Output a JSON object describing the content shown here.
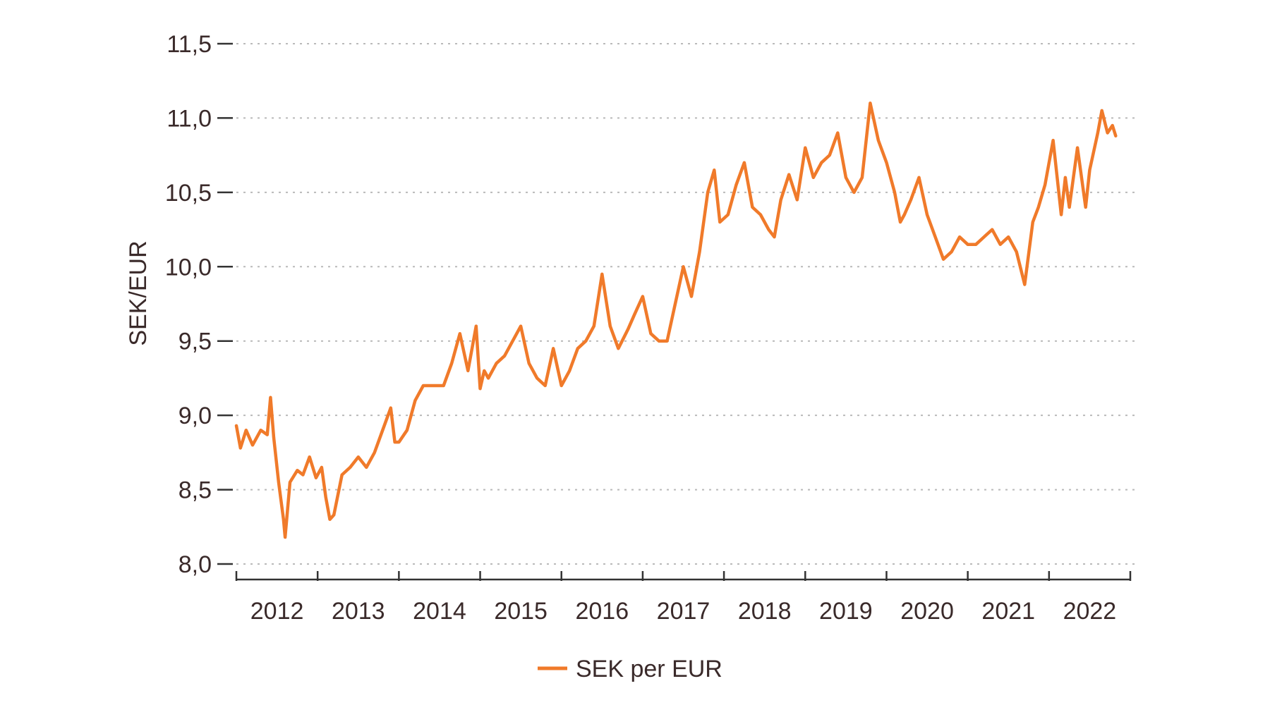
{
  "chart_data": {
    "type": "line",
    "title": "",
    "xlabel": "",
    "ylabel": "SEK/EUR",
    "ylim": [
      8.0,
      11.5
    ],
    "xlim": [
      2012.0,
      2023.0
    ],
    "y_ticks": [
      "8,0",
      "8,5",
      "9,0",
      "9,5",
      "10,0",
      "10,5",
      "11,0",
      "11,5"
    ],
    "y_tick_values": [
      8.0,
      8.5,
      9.0,
      9.5,
      10.0,
      10.5,
      11.0,
      11.5
    ],
    "x_ticks": [
      "2012",
      "2013",
      "2014",
      "2015",
      "2016",
      "2017",
      "2018",
      "2019",
      "2020",
      "2021",
      "2022"
    ],
    "grid": true,
    "legend_position": "bottom-center",
    "series": [
      {
        "name": "SEK per EUR",
        "color": "#f07a2a",
        "x": [
          2012.0,
          2012.05,
          2012.12,
          2012.2,
          2012.3,
          2012.38,
          2012.42,
          2012.46,
          2012.52,
          2012.58,
          2012.6,
          2012.66,
          2012.75,
          2012.82,
          2012.9,
          2012.98,
          2013.05,
          2013.1,
          2013.15,
          2013.2,
          2013.3,
          2013.4,
          2013.5,
          2013.6,
          2013.7,
          2013.8,
          2013.9,
          2013.95,
          2014.0,
          2014.1,
          2014.2,
          2014.3,
          2014.45,
          2014.55,
          2014.65,
          2014.75,
          2014.85,
          2014.95,
          2015.0,
          2015.05,
          2015.1,
          2015.2,
          2015.3,
          2015.4,
          2015.5,
          2015.6,
          2015.7,
          2015.8,
          2015.9,
          2016.0,
          2016.1,
          2016.2,
          2016.3,
          2016.4,
          2016.5,
          2016.6,
          2016.7,
          2016.82,
          2016.9,
          2017.0,
          2017.1,
          2017.2,
          2017.3,
          2017.4,
          2017.5,
          2017.6,
          2017.7,
          2017.8,
          2017.88,
          2017.95,
          2018.05,
          2018.15,
          2018.25,
          2018.35,
          2018.45,
          2018.55,
          2018.62,
          2018.7,
          2018.8,
          2018.9,
          2019.0,
          2019.1,
          2019.2,
          2019.3,
          2019.4,
          2019.5,
          2019.6,
          2019.7,
          2019.8,
          2019.9,
          2020.0,
          2020.1,
          2020.17,
          2020.22,
          2020.3,
          2020.4,
          2020.5,
          2020.6,
          2020.7,
          2020.8,
          2020.9,
          2021.0,
          2021.1,
          2021.2,
          2021.3,
          2021.4,
          2021.5,
          2021.6,
          2021.7,
          2021.8,
          2021.87,
          2021.95,
          2022.05,
          2022.15,
          2022.2,
          2022.25,
          2022.35,
          2022.45,
          2022.5,
          2022.6,
          2022.65,
          2022.72,
          2022.78,
          2022.82
        ],
        "values": [
          8.93,
          8.78,
          8.9,
          8.8,
          8.9,
          8.87,
          9.12,
          8.85,
          8.55,
          8.3,
          8.18,
          8.55,
          8.63,
          8.6,
          8.72,
          8.58,
          8.65,
          8.45,
          8.3,
          8.33,
          8.6,
          8.65,
          8.72,
          8.65,
          8.75,
          8.9,
          9.05,
          8.82,
          8.82,
          8.9,
          9.1,
          9.2,
          9.2,
          9.2,
          9.35,
          9.55,
          9.3,
          9.6,
          9.18,
          9.3,
          9.25,
          9.35,
          9.4,
          9.5,
          9.6,
          9.35,
          9.25,
          9.2,
          9.45,
          9.2,
          9.3,
          9.45,
          9.5,
          9.6,
          9.95,
          9.6,
          9.45,
          9.58,
          9.68,
          9.8,
          9.55,
          9.5,
          9.5,
          9.75,
          10.0,
          9.8,
          10.1,
          10.5,
          10.65,
          10.3,
          10.35,
          10.55,
          10.7,
          10.4,
          10.35,
          10.25,
          10.2,
          10.45,
          10.62,
          10.45,
          10.8,
          10.6,
          10.7,
          10.75,
          10.9,
          10.6,
          10.5,
          10.6,
          11.1,
          10.85,
          10.7,
          10.5,
          10.3,
          10.35,
          10.45,
          10.6,
          10.35,
          10.2,
          10.05,
          10.1,
          10.2,
          10.15,
          10.15,
          10.2,
          10.25,
          10.15,
          10.2,
          10.1,
          9.88,
          10.3,
          10.4,
          10.55,
          10.85,
          10.35,
          10.6,
          10.4,
          10.8,
          10.4,
          10.65,
          10.9,
          11.05,
          10.9,
          10.95,
          10.88
        ]
      }
    ]
  },
  "legend": {
    "label": "SEK per EUR"
  }
}
